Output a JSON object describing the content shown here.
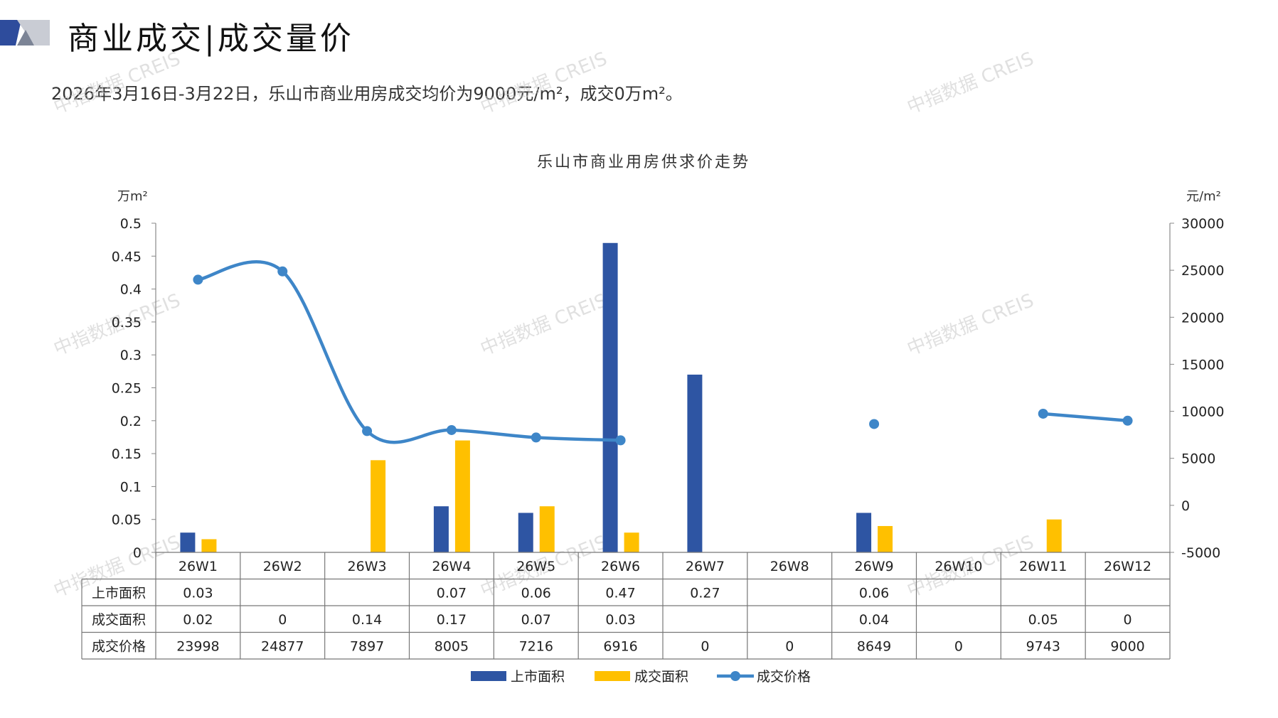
{
  "header": {
    "title": "商业成交|成交量价",
    "summary": "2026年3月16日-3月22日，乐山市商业用房成交均价为9000元/m²，成交0万m²。"
  },
  "watermark": "中指数据 CREIS",
  "colors": {
    "supply": "#2E55A3",
    "deal_area": "#FFC000",
    "price": "#3E86C8",
    "logo_dark": "#2E4C9C",
    "logo_light": "#C9CCD4"
  },
  "chart_data": {
    "type": "bar",
    "title": "乐山市商业用房供求价走势",
    "ylabel_left": "万m²",
    "ylabel_right": "元/m²",
    "ylim_left": [
      0,
      0.5
    ],
    "ylim_right": [
      -5000,
      30000
    ],
    "left_ticks": [
      "0.5",
      "0.45",
      "0.4",
      "0.35",
      "0.3",
      "0.25",
      "0.2",
      "0.15",
      "0.1",
      "0.05",
      "0"
    ],
    "right_ticks": [
      "30000",
      "25000",
      "20000",
      "15000",
      "10000",
      "5000",
      "0",
      "-5000"
    ],
    "categories": [
      "26W1",
      "26W2",
      "26W3",
      "26W4",
      "26W5",
      "26W6",
      "26W7",
      "26W8",
      "26W9",
      "26W10",
      "26W11",
      "26W12"
    ],
    "series": [
      {
        "name": "上市面积",
        "type": "bar",
        "values": [
          0.03,
          null,
          null,
          0.07,
          0.06,
          0.47,
          0.27,
          null,
          0.06,
          null,
          null,
          null
        ],
        "labels": [
          "0.03",
          "",
          "",
          "0.07",
          "0.06",
          "0.47",
          "0.27",
          "",
          "0.06",
          "",
          "",
          ""
        ]
      },
      {
        "name": "成交面积",
        "type": "bar",
        "values": [
          0.02,
          0,
          0.14,
          0.17,
          0.07,
          0.03,
          null,
          null,
          0.04,
          null,
          0.05,
          0
        ],
        "labels": [
          "0.02",
          "0",
          "0.14",
          "0.17",
          "0.07",
          "0.03",
          "",
          "",
          "0.04",
          "",
          "0.05",
          "0"
        ]
      },
      {
        "name": "成交价格",
        "type": "line",
        "values": [
          23998,
          24877,
          7897,
          8005,
          7216,
          6916,
          0,
          0,
          8649,
          0,
          9743,
          9000
        ],
        "labels": [
          "23998",
          "24877",
          "7897",
          "8005",
          "7216",
          "6916",
          "0",
          "0",
          "8649",
          "0",
          "9743",
          "9000"
        ]
      }
    ],
    "legend": "bottom-center"
  }
}
